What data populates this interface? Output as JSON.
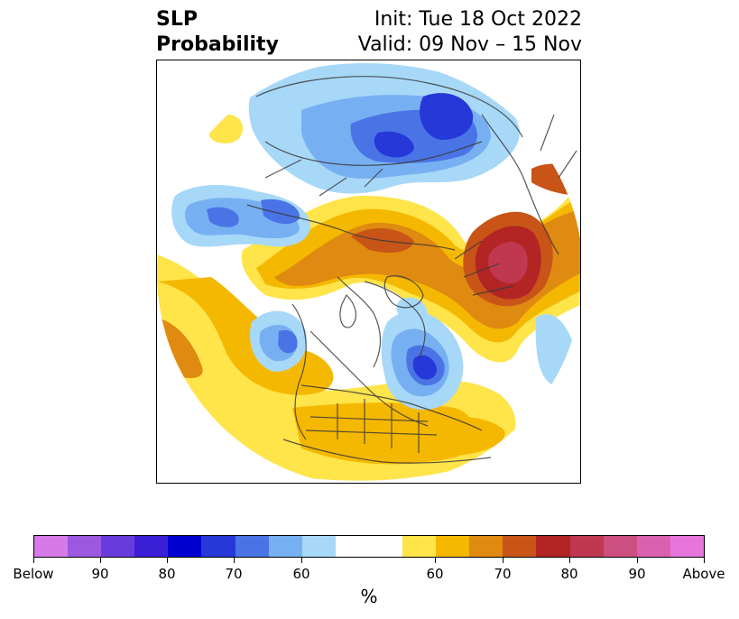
{
  "title": {
    "left_line1": "SLP",
    "left_line2": "Probability",
    "right_line1": "Init: Tue 18 Oct 2022",
    "right_line2": "Valid: 09 Nov – 15 Nov"
  },
  "colorbar": {
    "label": "%",
    "colors": [
      "#d67ae8",
      "#9b59e0",
      "#6a3bdc",
      "#3a1fd6",
      "#0000d0",
      "#2638d8",
      "#4a74e6",
      "#77b0f2",
      "#a8d8f8",
      "#ffffff",
      "#ffffff",
      "#ffe44a",
      "#f5b800",
      "#df8a10",
      "#c85418",
      "#b32424",
      "#c03850",
      "#cc4f80",
      "#db60b0",
      "#e676dc"
    ],
    "tick_labels": [
      "Below",
      "90",
      "80",
      "70",
      "60",
      "60",
      "70",
      "80",
      "90",
      "Above"
    ]
  },
  "map": {
    "description_colors": {
      "above_60": "#ffe44a",
      "above_65": "#f5b800",
      "above_70": "#df8a10",
      "above_75": "#c85418",
      "above_80": "#b32424",
      "above_85": "#c03850",
      "below_60": "#a8d8f8",
      "below_65": "#77b0f2",
      "below_70": "#4a74e6",
      "below_75": "#2638d8"
    }
  }
}
